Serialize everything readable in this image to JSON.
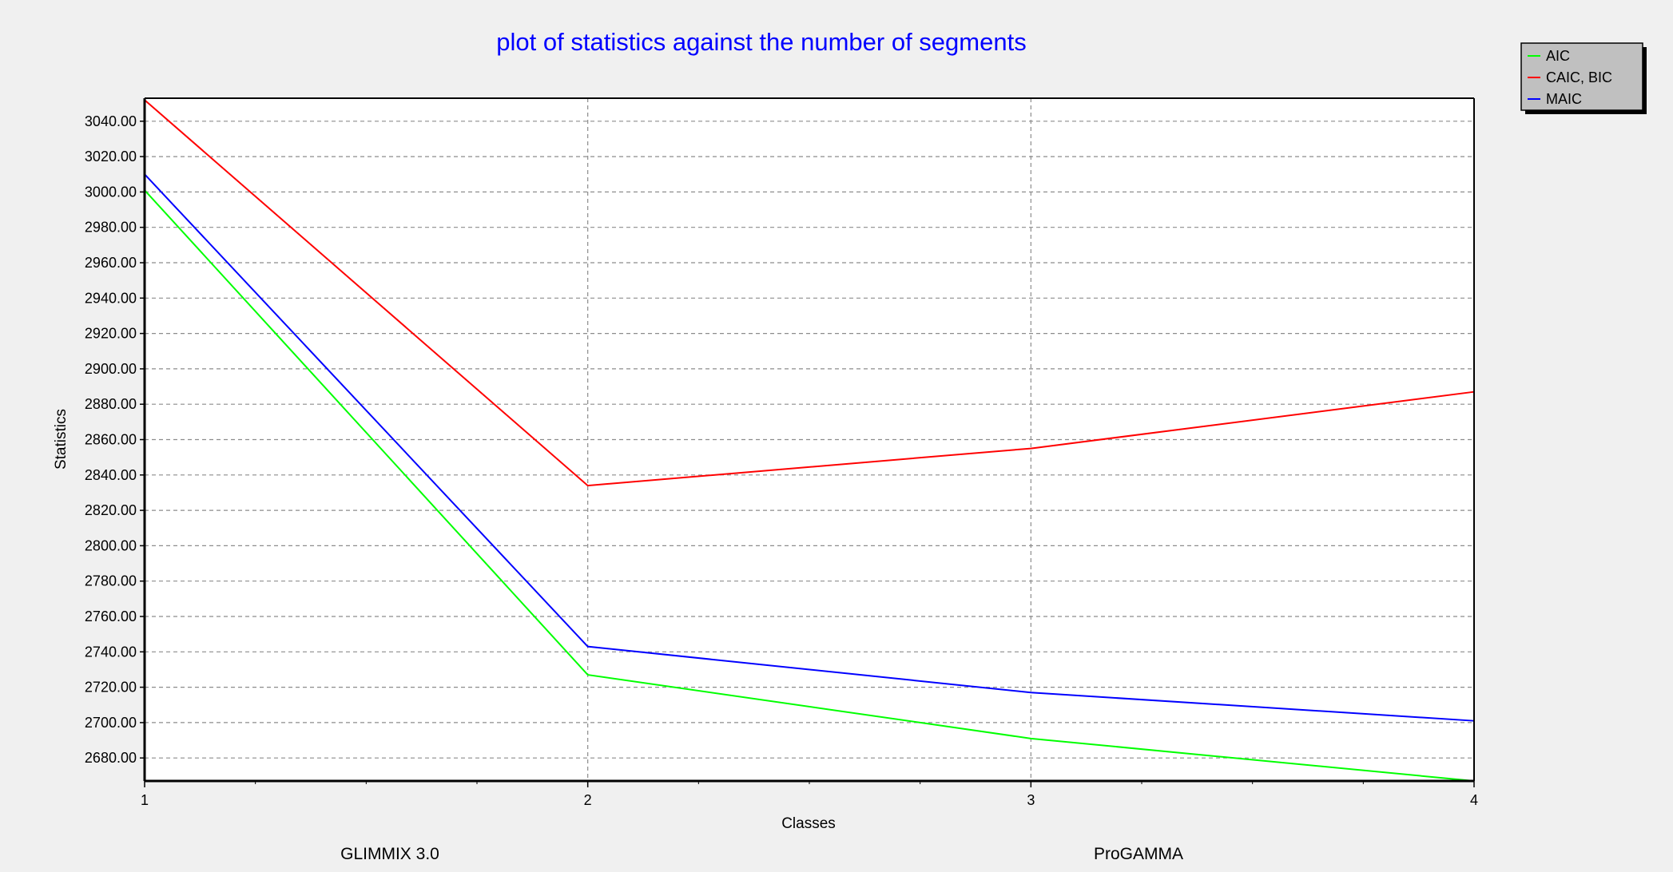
{
  "footer": {
    "left_label": "GLIMMIX 3.0",
    "right_label": "ProGAMMA"
  },
  "colors": {
    "background": "#f0f0f0",
    "plot_background": "#ffffff",
    "title": "#0000ff",
    "grid": "#8c8c8c",
    "legend_box": "#c0c0c0"
  },
  "chart_data": {
    "type": "line",
    "title": "plot of statistics against the number of segments",
    "xlabel": "Classes",
    "ylabel": "Statistics",
    "x": [
      1,
      2,
      3,
      4
    ],
    "x_ticks": [
      "1",
      "2",
      "3",
      "4"
    ],
    "xlim": [
      1,
      4
    ],
    "ylim": [
      2667,
      3053
    ],
    "y_ticks": [
      "2680.00",
      "2700.00",
      "2720.00",
      "2740.00",
      "2760.00",
      "2780.00",
      "2800.00",
      "2820.00",
      "2840.00",
      "2860.00",
      "2880.00",
      "2900.00",
      "2920.00",
      "2940.00",
      "2960.00",
      "2980.00",
      "3000.00",
      "3020.00",
      "3040.00"
    ],
    "grid": true,
    "legend_position": "top-right",
    "series": [
      {
        "name": "AIC",
        "color": "#00ff00",
        "values": [
          3001,
          2727,
          2691,
          2667
        ]
      },
      {
        "name": "CAIC, BIC",
        "color": "#ff0000",
        "values": [
          3052,
          2834,
          2855,
          2887
        ]
      },
      {
        "name": "MAIC",
        "color": "#0000ff",
        "values": [
          3010,
          2743,
          2717,
          2701
        ]
      }
    ]
  }
}
